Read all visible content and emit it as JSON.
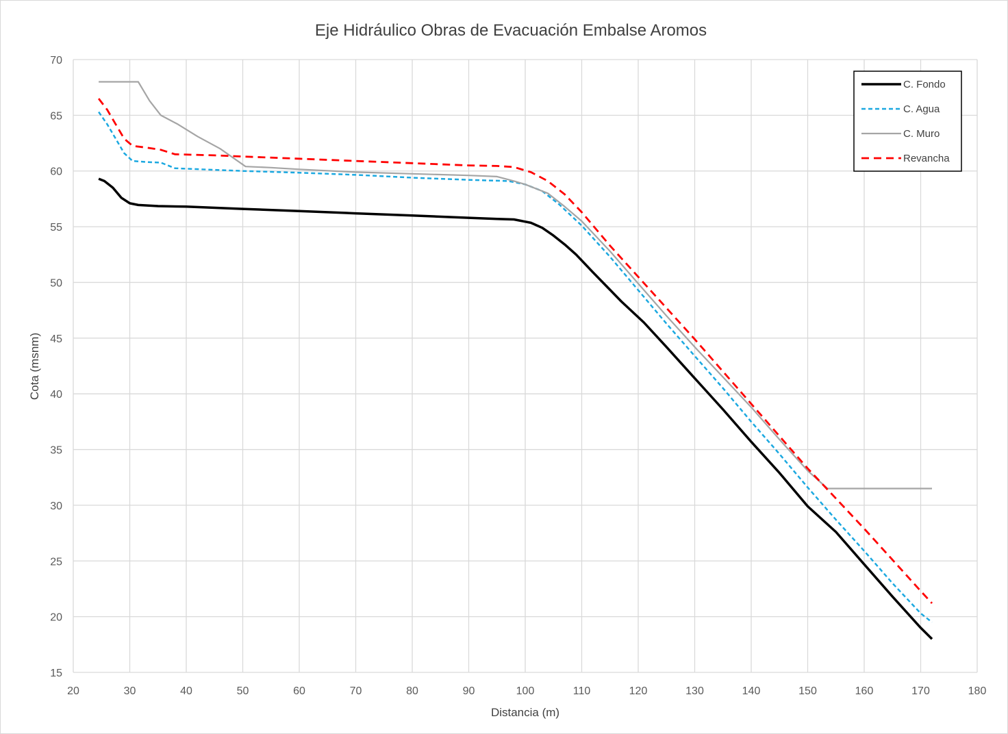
{
  "chart_data": {
    "type": "line",
    "title": "Eje Hidráulico Obras de Evacuación Embalse Aromos",
    "xlabel": "Distancia (m)",
    "ylabel": "Cota (msnm)",
    "xlim": [
      20,
      180
    ],
    "ylim": [
      15,
      70
    ],
    "xticks": [
      "20",
      "30",
      "40",
      "50",
      "60",
      "70",
      "80",
      "90",
      "100",
      "110",
      "120",
      "130",
      "140",
      "150",
      "160",
      "170",
      "180"
    ],
    "yticks": [
      "15",
      "20",
      "25",
      "30",
      "35",
      "40",
      "45",
      "50",
      "55",
      "60",
      "65",
      "70"
    ],
    "grid": true,
    "legend_position": "top-right",
    "series": [
      {
        "name": "C. Fondo",
        "color": "#000000",
        "dash": "solid",
        "points": [
          [
            24.5,
            59.3
          ],
          [
            25.5,
            59.1
          ],
          [
            27,
            58.5
          ],
          [
            28.5,
            57.6
          ],
          [
            30,
            57.1
          ],
          [
            31.5,
            56.95
          ],
          [
            35,
            56.85
          ],
          [
            40,
            56.8
          ],
          [
            50,
            56.6
          ],
          [
            60,
            56.4
          ],
          [
            70,
            56.2
          ],
          [
            80,
            56
          ],
          [
            90,
            55.8
          ],
          [
            95,
            55.7
          ],
          [
            98,
            55.65
          ],
          [
            101,
            55.35
          ],
          [
            103,
            54.9
          ],
          [
            105,
            54.2
          ],
          [
            107,
            53.4
          ],
          [
            109,
            52.5
          ],
          [
            112,
            50.9
          ],
          [
            117,
            48.3
          ],
          [
            121,
            46.4
          ],
          [
            125,
            44.2
          ],
          [
            130,
            41.4
          ],
          [
            135,
            38.6
          ],
          [
            140,
            35.7
          ],
          [
            145,
            32.9
          ],
          [
            150,
            29.9
          ],
          [
            155,
            27.6
          ],
          [
            160,
            24.7
          ],
          [
            165,
            21.8
          ],
          [
            170,
            19
          ],
          [
            172,
            18
          ]
        ]
      },
      {
        "name": "C. Agua",
        "color": "#1BA8E0",
        "dash": "dashed",
        "points": [
          [
            24.5,
            65.3
          ],
          [
            26,
            64.2
          ],
          [
            27.5,
            62.9
          ],
          [
            29,
            61.6
          ],
          [
            30.5,
            60.9
          ],
          [
            33,
            60.8
          ],
          [
            35.5,
            60.75
          ],
          [
            38,
            60.25
          ],
          [
            45,
            60.1
          ],
          [
            50,
            60
          ],
          [
            60,
            59.85
          ],
          [
            70,
            59.65
          ],
          [
            80,
            59.4
          ],
          [
            90,
            59.2
          ],
          [
            97,
            59.1
          ],
          [
            100,
            58.8
          ],
          [
            103,
            58.2
          ],
          [
            106,
            57
          ],
          [
            110,
            55.1
          ],
          [
            115,
            52.3
          ],
          [
            120,
            49.3
          ],
          [
            125,
            46.3
          ],
          [
            130,
            43.4
          ],
          [
            135,
            40.5
          ],
          [
            140,
            37.5
          ],
          [
            145,
            34.6
          ],
          [
            150,
            31.6
          ],
          [
            155,
            28.7
          ],
          [
            160,
            25.9
          ],
          [
            165,
            23
          ],
          [
            170,
            20.3
          ],
          [
            172,
            19.5
          ]
        ]
      },
      {
        "name": "C. Muro",
        "color": "#A5A5A5",
        "dash": "solid",
        "points": [
          [
            24.5,
            68
          ],
          [
            31.5,
            68
          ],
          [
            33.5,
            66.3
          ],
          [
            35.5,
            65
          ],
          [
            38.5,
            64.2
          ],
          [
            42,
            63.1
          ],
          [
            46,
            62
          ],
          [
            50.5,
            60.4
          ],
          [
            55,
            60.3
          ],
          [
            60,
            60.15
          ],
          [
            70,
            59.9
          ],
          [
            80,
            59.75
          ],
          [
            90,
            59.6
          ],
          [
            95,
            59.5
          ],
          [
            98,
            59.1
          ],
          [
            100,
            58.8
          ],
          [
            104,
            58
          ],
          [
            107,
            56.8
          ],
          [
            110,
            55.5
          ],
          [
            115,
            52.8
          ],
          [
            120,
            49.9
          ],
          [
            125,
            47
          ],
          [
            130,
            44.2
          ],
          [
            135,
            41.5
          ],
          [
            140,
            38.8
          ],
          [
            145,
            35.9
          ],
          [
            150,
            33.1
          ],
          [
            153.5,
            31.5
          ],
          [
            172,
            31.5
          ]
        ]
      },
      {
        "name": "Revancha",
        "color": "#FF0000",
        "dash": "dashed",
        "points": [
          [
            24.5,
            66.5
          ],
          [
            26,
            65.5
          ],
          [
            27.5,
            64.2
          ],
          [
            29,
            62.9
          ],
          [
            30.5,
            62.25
          ],
          [
            33,
            62.1
          ],
          [
            35.5,
            61.9
          ],
          [
            38,
            61.5
          ],
          [
            45,
            61.4
          ],
          [
            50,
            61.3
          ],
          [
            60,
            61.1
          ],
          [
            70,
            60.9
          ],
          [
            80,
            60.7
          ],
          [
            90,
            60.5
          ],
          [
            95,
            60.45
          ],
          [
            98,
            60.35
          ],
          [
            101,
            59.9
          ],
          [
            104,
            59.1
          ],
          [
            107,
            57.9
          ],
          [
            110,
            56.3
          ],
          [
            115,
            53.3
          ],
          [
            120,
            50.5
          ],
          [
            125,
            47.7
          ],
          [
            130,
            44.9
          ],
          [
            135,
            42
          ],
          [
            140,
            39.1
          ],
          [
            145,
            36.2
          ],
          [
            150,
            33.3
          ],
          [
            155,
            30.6
          ],
          [
            160,
            27.9
          ],
          [
            165,
            25.1
          ],
          [
            170,
            22.3
          ],
          [
            172,
            21.2
          ]
        ]
      }
    ]
  }
}
